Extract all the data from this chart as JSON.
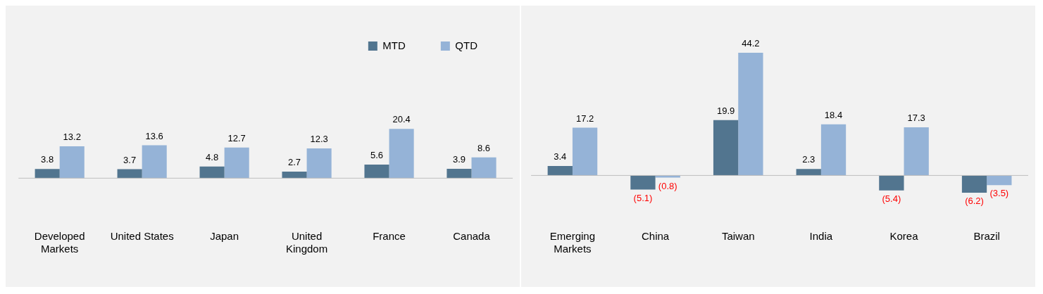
{
  "chart_data": [
    {
      "type": "bar",
      "categories": [
        "Developed Markets",
        "United States",
        "Japan",
        "United Kingdom",
        "France",
        "Canada"
      ],
      "legend": "top right",
      "series": [
        {
          "name": "MTD",
          "color": "#52758f",
          "values": [
            3.8,
            3.7,
            4.8,
            2.7,
            5.6,
            3.9
          ],
          "value_labels": [
            "3.8",
            "3.7",
            "4.8",
            "2.7",
            "5.6",
            "3.9"
          ]
        },
        {
          "name": "QTD",
          "color": "#95b3d7",
          "values": [
            13.2,
            13.6,
            12.7,
            12.3,
            20.4,
            8.6
          ],
          "value_labels": [
            "13.2",
            "13.6",
            "12.7",
            "12.3",
            "20.4",
            "8.6"
          ]
        }
      ]
    },
    {
      "type": "bar",
      "categories": [
        "Emerging Markets",
        "China",
        "Taiwan",
        "India",
        "Korea",
        "Brazil"
      ],
      "series": [
        {
          "color": "#52758f",
          "values": [
            3.4,
            -5.1,
            19.9,
            2.3,
            -5.4,
            -6.2
          ],
          "value_labels": [
            "3.4",
            "(5.1)",
            "19.9",
            "2.3",
            "(5.4)",
            "(6.2)"
          ]
        },
        {
          "color": "#95b3d7",
          "values": [
            17.2,
            -0.8,
            44.2,
            18.4,
            17.3,
            -3.5
          ],
          "value_labels": [
            "17.2",
            "(0.8)",
            "44.2",
            "18.4",
            "17.3",
            "(3.5)"
          ]
        }
      ]
    }
  ]
}
